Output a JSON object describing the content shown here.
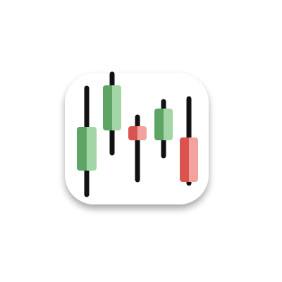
{
  "icon": {
    "name": "candlestick-chart-app-icon",
    "tile_color": "#ffffff",
    "shadow_color": "#9e9e9e"
  },
  "candles": [
    {
      "direction": "up",
      "color_light": "#a3d6a7",
      "color_dark": "#5ea565",
      "wick": "#111111"
    },
    {
      "direction": "up",
      "color_light": "#a3d6a7",
      "color_dark": "#5ea565",
      "wick": "#111111"
    },
    {
      "direction": "down",
      "color_light": "#f2a3a0",
      "color_dark": "#d9534f",
      "wick": "#111111"
    },
    {
      "direction": "up",
      "color_light": "#a3d6a7",
      "color_dark": "#5ea565",
      "wick": "#111111"
    },
    {
      "direction": "down",
      "color_light": "#f2a3a0",
      "color_dark": "#d9534f",
      "wick": "#111111"
    }
  ]
}
